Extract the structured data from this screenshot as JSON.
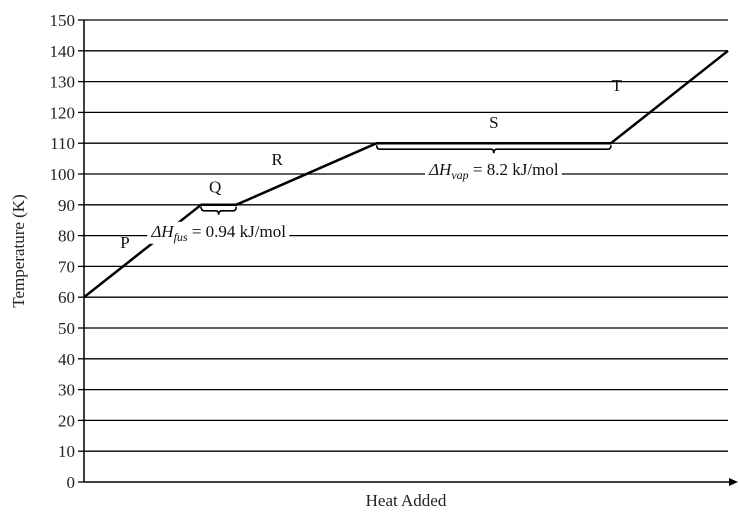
{
  "chart_data": {
    "type": "line",
    "title": "",
    "xlabel": "Heat Added",
    "ylabel": "Temperature (K)",
    "ylim": [
      0,
      150
    ],
    "yticks": [
      0,
      10,
      20,
      30,
      40,
      50,
      60,
      70,
      80,
      90,
      100,
      110,
      120,
      130,
      140,
      150
    ],
    "xticks": [],
    "grid": true,
    "series": [
      {
        "x": [
          0,
          1,
          1.3,
          2.5,
          4.5,
          5.5
        ],
        "y": [
          60,
          90,
          90,
          110,
          110,
          140
        ]
      }
    ],
    "segment_labels": [
      {
        "text": "P",
        "x": 0.35,
        "y": 76
      },
      {
        "text": "Q",
        "x": 1.12,
        "y": 94
      },
      {
        "text": "R",
        "x": 1.65,
        "y": 103
      },
      {
        "text": "S",
        "x": 3.5,
        "y": 115
      },
      {
        "text": "T",
        "x": 4.55,
        "y": 127
      }
    ],
    "annotations": [
      {
        "symbol": "ΔH",
        "subscript": "fus",
        "value": "= 0.94 kJ/mol",
        "range_x": [
          1,
          1.3
        ],
        "at_y": 90
      },
      {
        "symbol": "ΔH",
        "subscript": "vap",
        "value": "= 8.2 kJ/mol",
        "range_x": [
          2.5,
          4.5
        ],
        "at_y": 110
      }
    ]
  }
}
